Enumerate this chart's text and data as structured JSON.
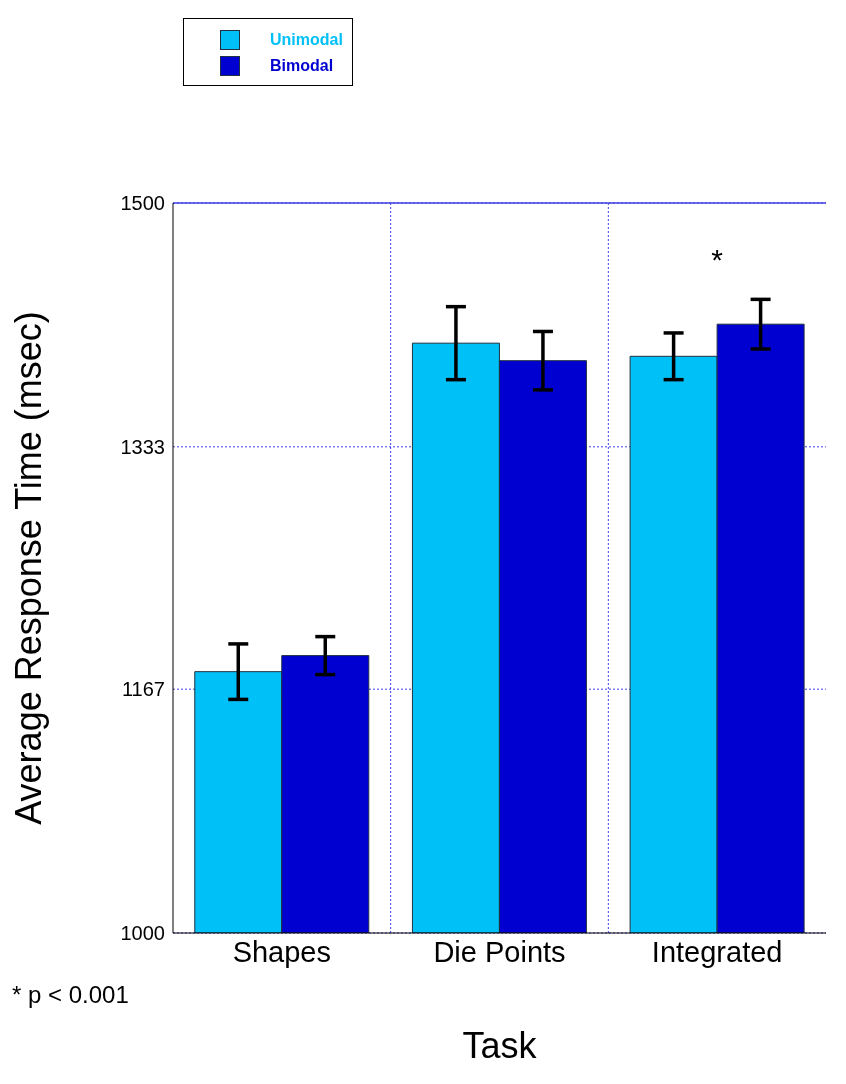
{
  "chart_data": {
    "type": "bar",
    "xlabel": "Task",
    "ylabel": "Average Response Time (msec)",
    "categories": [
      "Shapes",
      "Die Points",
      "Integrated"
    ],
    "series": [
      {
        "name": "Unimodal",
        "color": "#00c0f8",
        "values": [
          1179,
          1404,
          1395
        ],
        "errors": [
          19,
          25,
          16
        ]
      },
      {
        "name": "Bimodal",
        "color": "#0000d0",
        "values": [
          1190,
          1392,
          1417
        ],
        "errors": [
          13,
          20,
          17
        ]
      }
    ],
    "ylim": [
      1000,
      1500
    ],
    "yticks": [
      1000,
      1167,
      1333,
      1500
    ],
    "grid": true,
    "legend": "top left",
    "annotations": [
      {
        "text": "*",
        "x": "Integrated",
        "y": 1417
      },
      "* p < 0.001"
    ]
  }
}
